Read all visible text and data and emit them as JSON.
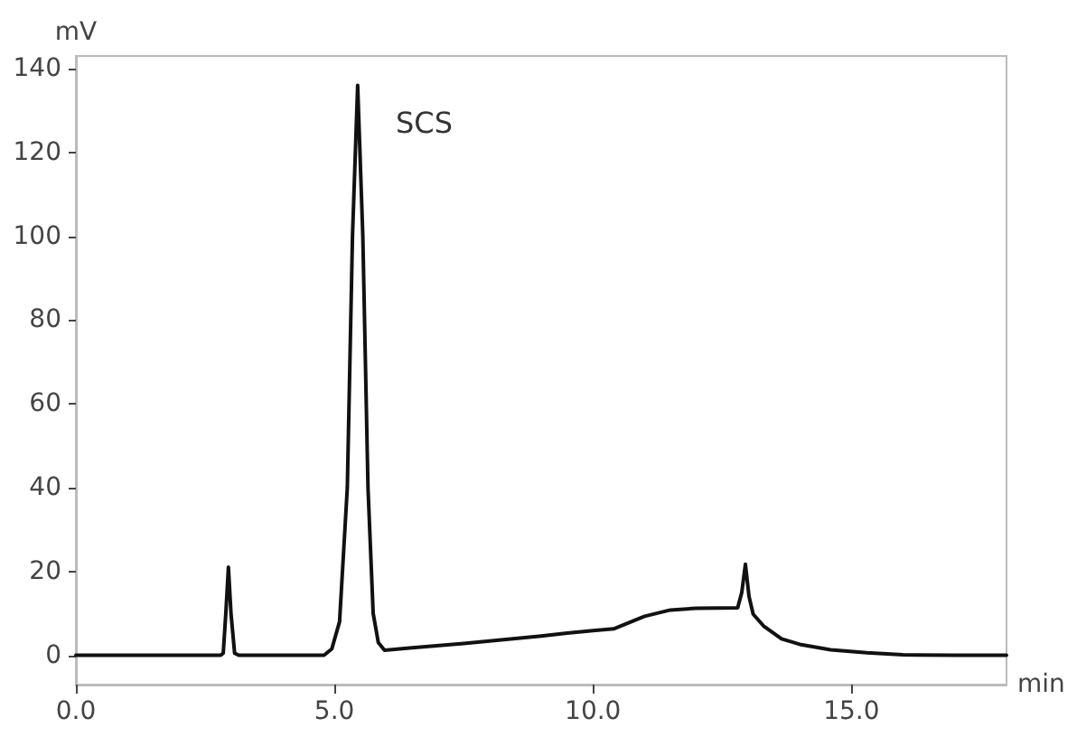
{
  "chart_data": {
    "type": "line",
    "xlabel": "min",
    "ylabel": "mV",
    "x": [
      0,
      1,
      2,
      2.8,
      2.85,
      2.9,
      2.95,
      3.0,
      3.07,
      3.15,
      4.8,
      4.95,
      5.1,
      5.25,
      5.35,
      5.45,
      5.55,
      5.65,
      5.75,
      5.85,
      5.97,
      6.5,
      7.5,
      8.5,
      9.0,
      9.5,
      10.0,
      10.4,
      10.7,
      11.0,
      11.5,
      12.0,
      12.8,
      12.88,
      12.95,
      13.02,
      13.1,
      13.3,
      13.65,
      14.0,
      14.6,
      15.3,
      16.0,
      17.0,
      18.0
    ],
    "values": [
      0,
      0,
      0,
      0,
      0.5,
      10,
      21,
      10,
      0.5,
      0,
      0,
      1.5,
      8,
      40,
      100,
      136,
      100,
      40,
      10,
      3,
      1.2,
      1.8,
      2.8,
      4,
      4.6,
      5.3,
      5.9,
      6.3,
      7.8,
      9.3,
      10.8,
      11.2,
      11.3,
      15,
      21.7,
      14,
      9.8,
      7,
      3.9,
      2.6,
      1.3,
      0.6,
      0.1,
      0,
      0
    ],
    "color": "#111111",
    "marker": "none",
    "line_style": "solid",
    "xlim": [
      0,
      18
    ],
    "ylim": [
      -7,
      143
    ],
    "xticks": [
      {
        "value": 0,
        "label": "0.0"
      },
      {
        "value": 5,
        "label": "5.0"
      },
      {
        "value": 10,
        "label": "10.0"
      },
      {
        "value": 15,
        "label": "15.0"
      }
    ],
    "yticks": [
      0,
      20,
      40,
      60,
      80,
      100,
      120,
      140
    ],
    "annotations": [
      "SCS"
    ]
  }
}
